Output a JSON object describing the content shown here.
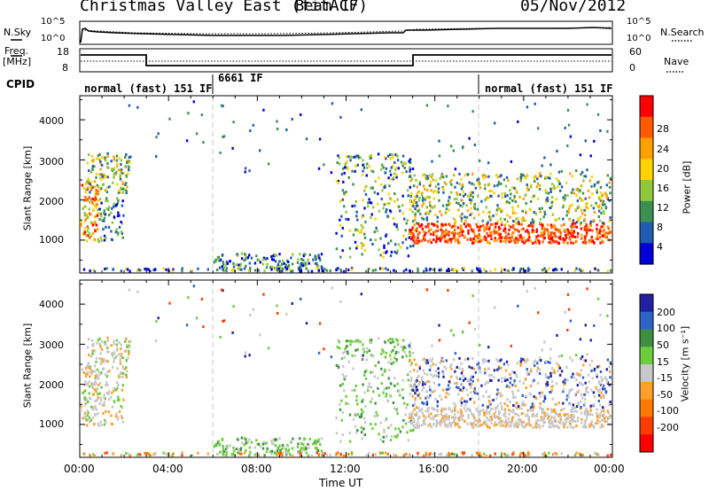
{
  "header": {
    "title": "Christmas Valley East (fitACF)",
    "beam": "Beam 17",
    "date": "05/Nov/2012"
  },
  "noise_panel": {
    "left_label": "N.Sky",
    "left_ticks": [
      "10^5",
      "10^0"
    ],
    "right_ticks": [
      "10^5",
      "10^0"
    ],
    "right_label": "N.Search"
  },
  "freq_panel": {
    "left_label": "Freq.",
    "left_unit": "[MHz]",
    "left_ticks": [
      "18",
      "8"
    ],
    "right_ticks": [
      "60",
      "0"
    ],
    "right_label": "Nave"
  },
  "cpid": {
    "label": "CPID",
    "segments": [
      {
        "start": 0,
        "text": "normal (fast) 151 IF"
      },
      {
        "start": 6,
        "text": "6661 IF"
      },
      {
        "start": 18,
        "text": "normal (fast) 151 IF"
      }
    ]
  },
  "chart_data": [
    {
      "type": "heatmap",
      "name": "power",
      "xlabel": "",
      "ylabel": "Slant Range [km]",
      "xlim": [
        0,
        24
      ],
      "ylim": [
        180,
        4600
      ],
      "y_ticks": [
        "1000",
        "2000",
        "3000",
        "4000"
      ],
      "colorbar": {
        "label": "Power [dB]",
        "ticks": [
          "28",
          "24",
          "20",
          "16",
          "12",
          "8",
          "4"
        ],
        "colors": [
          "#ff0000",
          "#ff5a00",
          "#ffa000",
          "#ffd200",
          "#90c83c",
          "#3c9050",
          "#205cb0",
          "#0000d8"
        ]
      }
    },
    {
      "type": "heatmap",
      "name": "velocity",
      "xlabel": "Time UT",
      "ylabel": "Slant Range [km]",
      "xlim": [
        0,
        24
      ],
      "ylim": [
        180,
        4600
      ],
      "x_ticks": [
        "00:00",
        "04:00",
        "08:00",
        "12:00",
        "16:00",
        "20:00",
        "00:00"
      ],
      "y_ticks": [
        "1000",
        "2000",
        "3000",
        "4000"
      ],
      "colorbar": {
        "label": "Velocity [m s⁻¹]",
        "ticks": [
          "200",
          "100",
          "50",
          "15",
          "-15",
          "-50",
          "-100",
          "-200"
        ],
        "colors": [
          "#2020a0",
          "#2d64c8",
          "#3c9040",
          "#6acd3c",
          "#c8c8c8",
          "#ffa028",
          "#ff7800",
          "#ff3c00",
          "#ff0000"
        ]
      }
    }
  ]
}
